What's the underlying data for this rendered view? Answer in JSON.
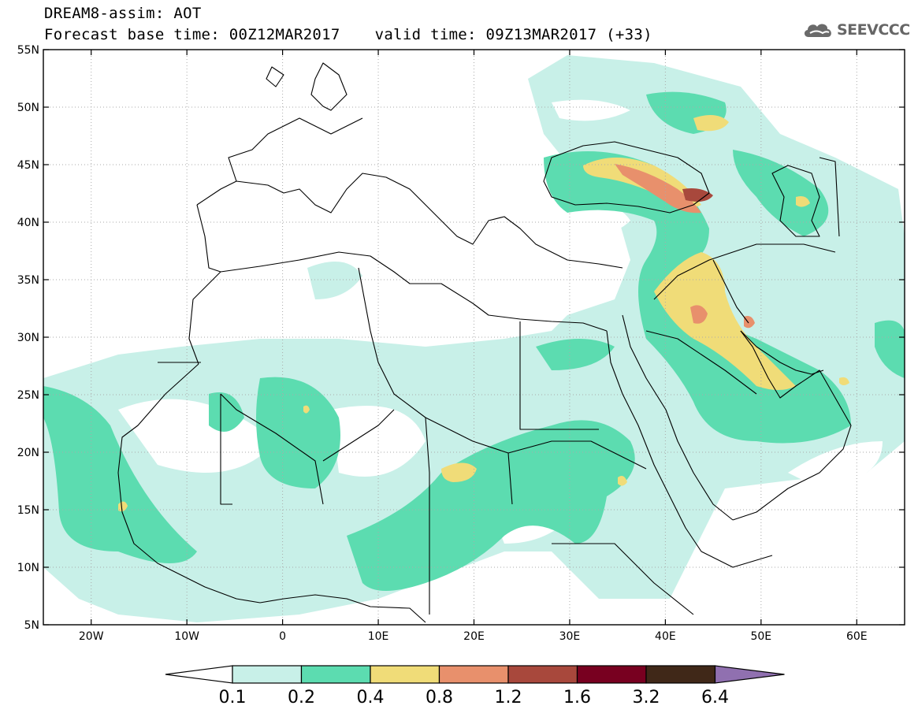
{
  "header": {
    "line1": "DREAM8-assim: AOT",
    "line2_base": "Forecast base time: 00Z12MAR2017",
    "line2_valid": "valid time: 09Z13MAR2017 (+33)"
  },
  "logo": {
    "text": "SEEVCCC",
    "icon": "cloud-icon"
  },
  "map": {
    "lat_labels": [
      "55N",
      "50N",
      "45N",
      "40N",
      "35N",
      "30N",
      "25N",
      "20N",
      "15N",
      "10N",
      "5N"
    ],
    "lon_labels": [
      "20W",
      "10W",
      "0",
      "10E",
      "20E",
      "30E",
      "40E",
      "50E",
      "60E"
    ],
    "lon_range": [
      -25,
      65
    ],
    "lat_range": [
      5,
      55
    ]
  },
  "legend": {
    "labels": [
      "0.1",
      "0.2",
      "0.4",
      "0.8",
      "1.2",
      "1.6",
      "3.2",
      "6.4"
    ],
    "colors": [
      "#ffffff",
      "#c8f0e8",
      "#5cdcb0",
      "#f0dc78",
      "#e8906c",
      "#a8483c",
      "#780020",
      "#402818",
      "#9070b0"
    ]
  }
}
